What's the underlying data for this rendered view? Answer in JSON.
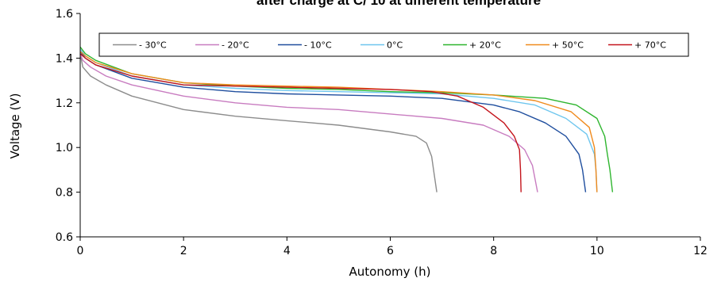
{
  "chart_data": {
    "type": "line",
    "title": "after charge at C/ 10 at different temperature",
    "xlabel": "Autonomy (h)",
    "ylabel": "Voltage (V)",
    "xlim": [
      0,
      12
    ],
    "ylim": [
      0.6,
      1.6
    ],
    "xticks": [
      "0",
      "2",
      "4",
      "6",
      "8",
      "10",
      "12"
    ],
    "yticks": [
      "0.6",
      "0.8",
      "1.0",
      "1.2",
      "1.4",
      "1.6"
    ],
    "grid": false,
    "legend": "top, inside plot, single row",
    "series": [
      {
        "name": "- 30°C",
        "color": "#8c8c8c",
        "points": [
          [
            0,
            1.42
          ],
          [
            0.05,
            1.36
          ],
          [
            0.2,
            1.32
          ],
          [
            0.5,
            1.28
          ],
          [
            1,
            1.23
          ],
          [
            2,
            1.17
          ],
          [
            3,
            1.14
          ],
          [
            4,
            1.12
          ],
          [
            5,
            1.1
          ],
          [
            6,
            1.07
          ],
          [
            6.5,
            1.05
          ],
          [
            6.7,
            1.02
          ],
          [
            6.8,
            0.96
          ],
          [
            6.85,
            0.88
          ],
          [
            6.9,
            0.8
          ]
        ]
      },
      {
        "name": "- 20°C",
        "color": "#c87cc0",
        "points": [
          [
            0,
            1.42
          ],
          [
            0.05,
            1.39
          ],
          [
            0.2,
            1.36
          ],
          [
            0.5,
            1.32
          ],
          [
            1,
            1.28
          ],
          [
            2,
            1.23
          ],
          [
            3,
            1.2
          ],
          [
            4,
            1.18
          ],
          [
            5,
            1.17
          ],
          [
            6,
            1.15
          ],
          [
            7,
            1.13
          ],
          [
            7.8,
            1.1
          ],
          [
            8.3,
            1.05
          ],
          [
            8.6,
            0.99
          ],
          [
            8.75,
            0.92
          ],
          [
            8.85,
            0.8
          ]
        ]
      },
      {
        "name": "- 10°C",
        "color": "#1f4e9e",
        "points": [
          [
            0,
            1.43
          ],
          [
            0.1,
            1.4
          ],
          [
            0.3,
            1.37
          ],
          [
            1,
            1.31
          ],
          [
            2,
            1.27
          ],
          [
            3,
            1.25
          ],
          [
            4,
            1.24
          ],
          [
            5,
            1.235
          ],
          [
            6,
            1.23
          ],
          [
            7,
            1.22
          ],
          [
            8,
            1.19
          ],
          [
            8.5,
            1.16
          ],
          [
            9,
            1.11
          ],
          [
            9.4,
            1.05
          ],
          [
            9.65,
            0.97
          ],
          [
            9.72,
            0.9
          ],
          [
            9.78,
            0.8
          ]
        ]
      },
      {
        "name": "0°C",
        "color": "#6ec6ee",
        "points": [
          [
            0,
            1.44
          ],
          [
            0.1,
            1.41
          ],
          [
            0.3,
            1.38
          ],
          [
            1,
            1.32
          ],
          [
            2,
            1.28
          ],
          [
            3,
            1.265
          ],
          [
            4,
            1.255
          ],
          [
            5,
            1.25
          ],
          [
            6,
            1.245
          ],
          [
            7,
            1.24
          ],
          [
            8,
            1.22
          ],
          [
            8.8,
            1.19
          ],
          [
            9.4,
            1.13
          ],
          [
            9.8,
            1.06
          ],
          [
            9.95,
            0.97
          ],
          [
            9.98,
            0.9
          ],
          [
            10.0,
            0.8
          ]
        ]
      },
      {
        "name": "+ 20°C",
        "color": "#2eb52e",
        "points": [
          [
            0,
            1.45
          ],
          [
            0.1,
            1.42
          ],
          [
            0.3,
            1.39
          ],
          [
            1,
            1.33
          ],
          [
            2,
            1.29
          ],
          [
            3,
            1.275
          ],
          [
            4,
            1.265
          ],
          [
            5,
            1.26
          ],
          [
            6,
            1.25
          ],
          [
            7,
            1.245
          ],
          [
            8,
            1.235
          ],
          [
            9,
            1.22
          ],
          [
            9.6,
            1.19
          ],
          [
            10.0,
            1.13
          ],
          [
            10.15,
            1.05
          ],
          [
            10.2,
            0.97
          ],
          [
            10.25,
            0.9
          ],
          [
            10.3,
            0.8
          ]
        ]
      },
      {
        "name": "+ 50°C",
        "color": "#f08a1c",
        "points": [
          [
            0,
            1.43
          ],
          [
            0.1,
            1.41
          ],
          [
            0.3,
            1.38
          ],
          [
            1,
            1.33
          ],
          [
            2,
            1.29
          ],
          [
            3,
            1.28
          ],
          [
            4,
            1.275
          ],
          [
            5,
            1.27
          ],
          [
            6,
            1.26
          ],
          [
            7,
            1.25
          ],
          [
            8,
            1.235
          ],
          [
            8.8,
            1.21
          ],
          [
            9.5,
            1.16
          ],
          [
            9.85,
            1.09
          ],
          [
            9.95,
            1.0
          ],
          [
            9.98,
            0.9
          ],
          [
            10.0,
            0.8
          ]
        ]
      },
      {
        "name": "+ 70°C",
        "color": "#c4141c",
        "points": [
          [
            0,
            1.42
          ],
          [
            0.1,
            1.4
          ],
          [
            0.3,
            1.37
          ],
          [
            1,
            1.32
          ],
          [
            2,
            1.28
          ],
          [
            3,
            1.275
          ],
          [
            4,
            1.27
          ],
          [
            5,
            1.265
          ],
          [
            6,
            1.26
          ],
          [
            6.8,
            1.25
          ],
          [
            7.3,
            1.23
          ],
          [
            7.8,
            1.18
          ],
          [
            8.2,
            1.11
          ],
          [
            8.4,
            1.05
          ],
          [
            8.5,
            0.99
          ],
          [
            8.52,
            0.9
          ],
          [
            8.53,
            0.8
          ]
        ]
      }
    ]
  }
}
